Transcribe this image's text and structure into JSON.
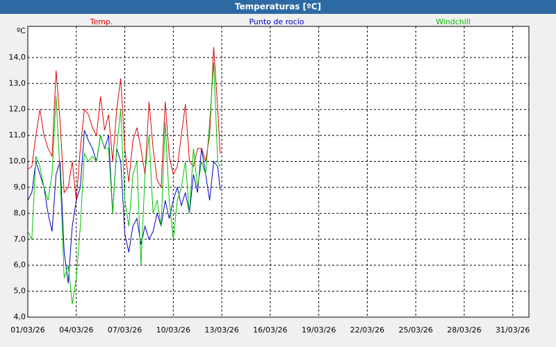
{
  "chart_data": {
    "type": "line",
    "title": "Temperaturas [ºC]",
    "y_label": "ºC",
    "x": [
      1,
      1.25,
      1.5,
      1.75,
      2,
      2.25,
      2.5,
      2.75,
      3,
      3.25,
      3.5,
      3.75,
      4,
      4.25,
      4.5,
      4.75,
      5,
      5.25,
      5.5,
      5.75,
      6,
      6.25,
      6.5,
      6.75,
      7,
      7.25,
      7.5,
      7.75,
      8,
      8.25,
      8.5,
      8.75,
      9,
      9.25,
      9.5,
      9.75,
      10,
      10.25,
      10.5,
      10.75,
      11,
      11.25,
      11.5,
      11.75,
      12,
      12.25,
      12.5,
      12.75,
      12.9
    ],
    "series": [
      {
        "name": "Temp.",
        "color": "#e00000",
        "values": [
          9.7,
          9.8,
          11.0,
          12.0,
          11.0,
          10.5,
          10.2,
          13.5,
          11.5,
          8.8,
          9.0,
          10.0,
          8.5,
          10.5,
          12.0,
          11.8,
          11.3,
          11.0,
          12.5,
          11.2,
          11.8,
          10.0,
          12.0,
          13.2,
          10.5,
          9.2,
          10.8,
          11.3,
          10.5,
          9.5,
          12.3,
          10.5,
          9.3,
          9.0,
          12.3,
          10.2,
          9.5,
          9.8,
          11.0,
          12.2,
          10.0,
          9.8,
          10.5,
          10.5,
          10.0,
          11.0,
          14.4,
          12.0,
          10.3
        ]
      },
      {
        "name": "Punto de rocío",
        "color": "#0000c0",
        "values": [
          8.5,
          8.8,
          10.0,
          9.5,
          9.0,
          8.0,
          7.3,
          9.5,
          10.0,
          6.5,
          5.3,
          7.5,
          8.5,
          9.0,
          11.2,
          10.8,
          10.5,
          10.0,
          11.0,
          10.5,
          11.0,
          8.0,
          10.5,
          10.0,
          7.2,
          6.5,
          7.5,
          7.8,
          6.8,
          7.5,
          7.0,
          7.3,
          8.0,
          7.5,
          8.5,
          7.8,
          8.5,
          9.0,
          8.3,
          8.8,
          8.0,
          9.5,
          8.8,
          10.5,
          9.5,
          8.5,
          10.0,
          9.8,
          8.9
        ]
      },
      {
        "name": "Windchill",
        "color": "#00c000",
        "values": [
          7.3,
          7.0,
          10.2,
          9.8,
          9.0,
          8.5,
          9.5,
          12.5,
          9.5,
          5.5,
          6.0,
          4.5,
          5.5,
          7.5,
          10.3,
          10.0,
          10.2,
          10.0,
          11.0,
          10.5,
          10.5,
          8.0,
          10.5,
          12.0,
          8.5,
          7.5,
          9.5,
          10.0,
          6.0,
          9.5,
          11.0,
          8.0,
          8.5,
          7.5,
          11.5,
          8.5,
          7.0,
          8.5,
          9.0,
          10.0,
          8.0,
          10.5,
          9.0,
          10.0,
          9.5,
          11.5,
          13.8,
          10.0,
          9.8
        ]
      }
    ],
    "xlim": [
      1,
      32
    ],
    "xticks": [
      {
        "value": 1,
        "label": "01/03/26"
      },
      {
        "value": 4,
        "label": "04/03/26"
      },
      {
        "value": 7,
        "label": "07/03/26"
      },
      {
        "value": 10,
        "label": "10/03/26"
      },
      {
        "value": 13,
        "label": "13/03/26"
      },
      {
        "value": 16,
        "label": "16/03/26"
      },
      {
        "value": 19,
        "label": "19/03/26"
      },
      {
        "value": 22,
        "label": "22/03/26"
      },
      {
        "value": 25,
        "label": "25/03/26"
      },
      {
        "value": 28,
        "label": "28/03/26"
      },
      {
        "value": 31,
        "label": "31/03/26"
      }
    ],
    "ylim": [
      4,
      15.2
    ],
    "yticks": [
      {
        "value": 4,
        "label": "4,0"
      },
      {
        "value": 5,
        "label": "5,0"
      },
      {
        "value": 6,
        "label": "6,0"
      },
      {
        "value": 7,
        "label": "7,0"
      },
      {
        "value": 8,
        "label": "8,0"
      },
      {
        "value": 9,
        "label": "9,0"
      },
      {
        "value": 10,
        "label": "10,0"
      },
      {
        "value": 11,
        "label": "11,0"
      },
      {
        "value": 12,
        "label": "12,0"
      },
      {
        "value": 13,
        "label": "13,0"
      },
      {
        "value": 14,
        "label": "14,0"
      }
    ],
    "grid": true
  }
}
